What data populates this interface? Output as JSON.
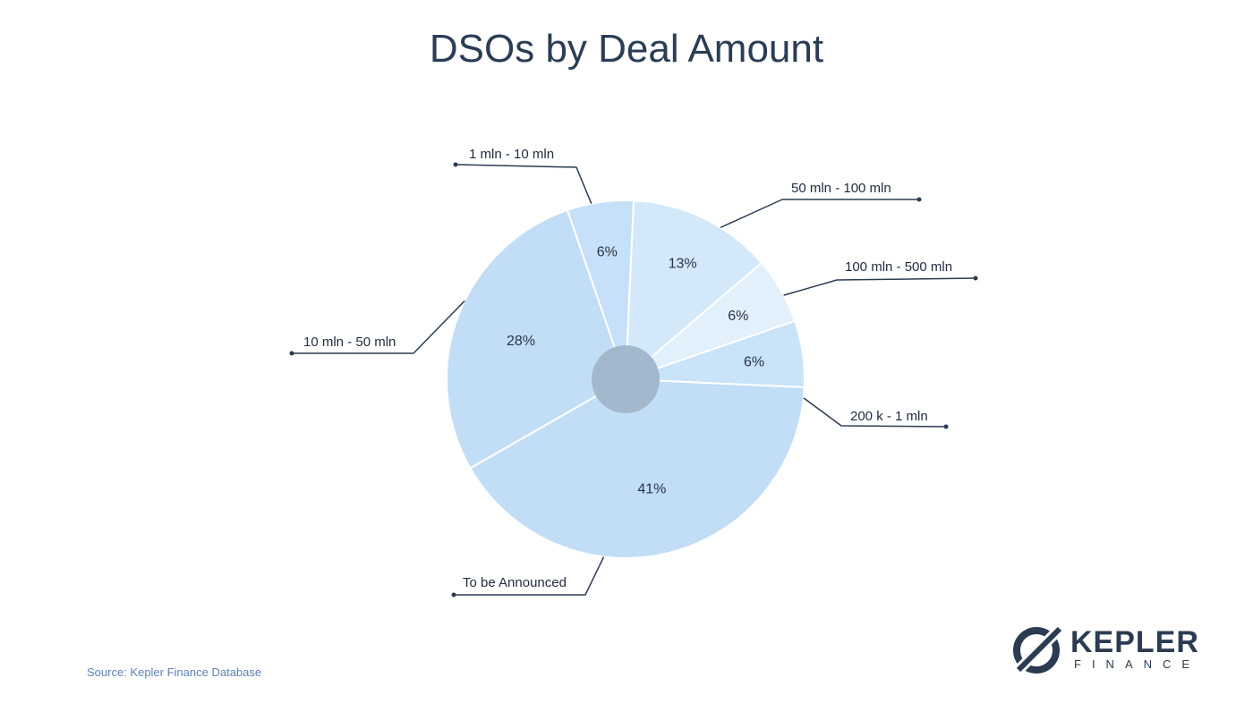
{
  "chart_data": {
    "type": "pie",
    "title": "DSOs by Deal Amount",
    "categories": [
      "1 mln - 10 mln",
      "50 mln - 100 mln",
      "100 mln - 500 mln",
      "200 k - 1 mln",
      "To be Announced",
      "10 mln - 50 mln"
    ],
    "values": [
      6,
      13,
      6,
      6,
      41,
      28
    ],
    "value_labels": [
      "6%",
      "13%",
      "6%",
      "6%",
      "41%",
      "28%"
    ],
    "colors": [
      "#c5e0f8",
      "#d3e9fa",
      "#e2f0fc",
      "#c9e3f9",
      "#c2ddf6",
      "#c2ddf6"
    ],
    "center_color": "#a3b8cd",
    "legend": "callouts"
  },
  "source": "Source: Kepler Finance Database",
  "logo": {
    "word": "KEPLER",
    "sub": "FINANCE",
    "color": "#2b3c52"
  }
}
